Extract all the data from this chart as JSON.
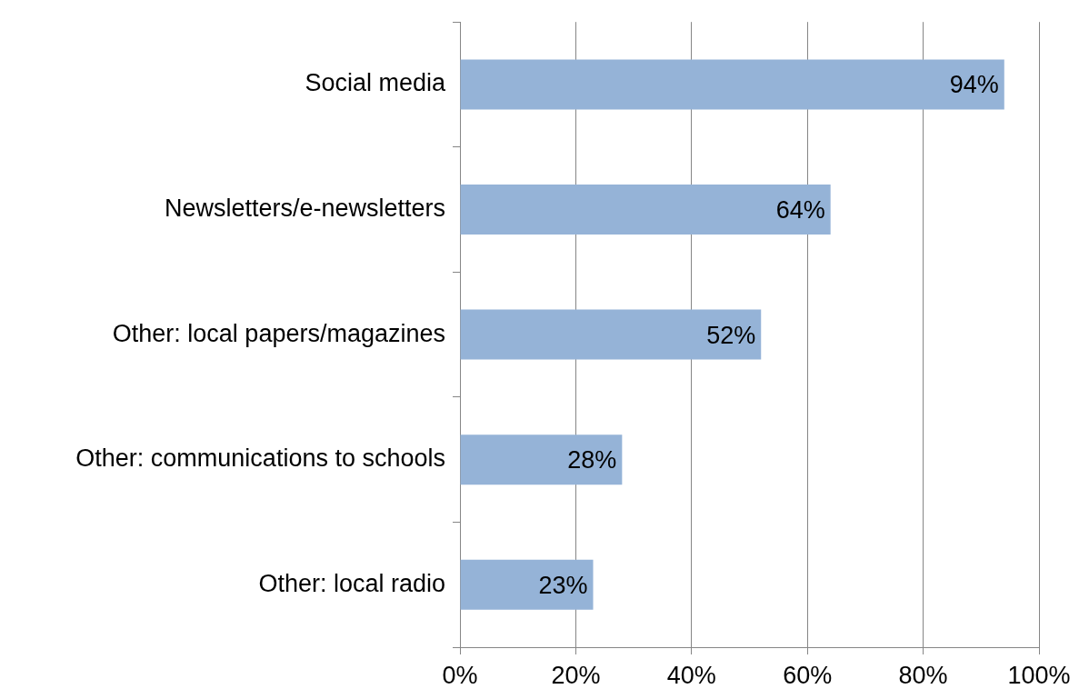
{
  "chart_data": {
    "type": "bar",
    "orientation": "horizontal",
    "categories": [
      "Social media",
      "Newsletters/e-newsletters",
      "Other: local papers/magazines",
      "Other: communications to schools",
      "Other: local radio"
    ],
    "values": [
      94,
      64,
      52,
      28,
      23
    ],
    "value_labels": [
      "94%",
      "64%",
      "52%",
      "28%",
      "23%"
    ],
    "color": "#95b3d7",
    "xlim": [
      0,
      100
    ],
    "xticks": [
      {
        "value": 0,
        "label": "0%"
      },
      {
        "value": 20,
        "label": "20%"
      },
      {
        "value": 40,
        "label": "40%"
      },
      {
        "value": 60,
        "label": "60%"
      },
      {
        "value": 80,
        "label": "80%"
      },
      {
        "value": 100,
        "label": "100%"
      }
    ],
    "grid": "x",
    "legend": false
  }
}
